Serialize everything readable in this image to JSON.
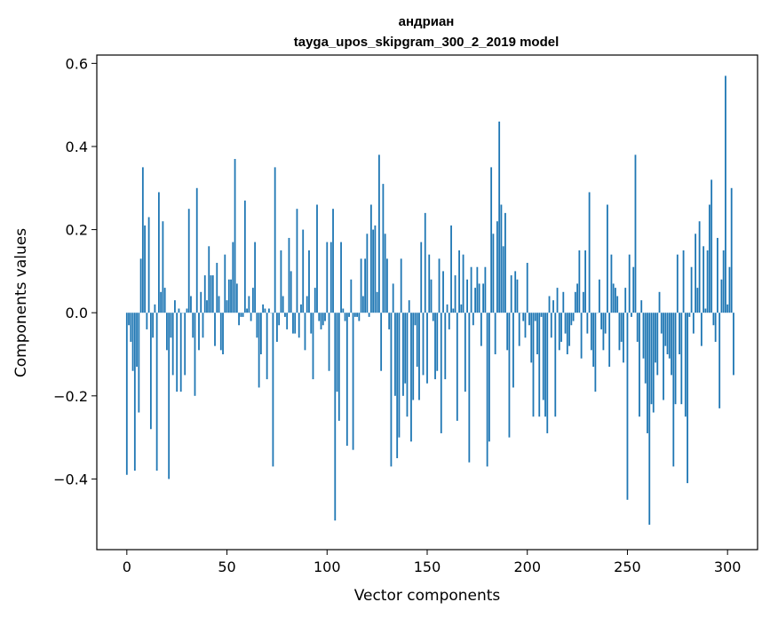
{
  "chart_data": {
    "type": "bar",
    "title": "андриан",
    "subtitle": "tayga_upos_skipgram_300_2_2019 model",
    "xlabel": "Vector components",
    "ylabel": "Components values",
    "xlim": [
      -15,
      315
    ],
    "ylim": [
      -0.57,
      0.62
    ],
    "xticks": [
      0,
      50,
      100,
      150,
      200,
      250,
      300
    ],
    "yticks": [
      -0.4,
      -0.2,
      0.0,
      0.2,
      0.4,
      0.6
    ],
    "ytick_labels": [
      "−0.4",
      "−0.2",
      "0.0",
      "0.2",
      "0.4",
      "0.6"
    ],
    "bar_color": "#1f77b4",
    "grid": false,
    "values": [
      -0.39,
      -0.03,
      -0.07,
      -0.14,
      -0.38,
      -0.13,
      -0.24,
      0.13,
      0.35,
      0.21,
      -0.04,
      0.23,
      -0.28,
      -0.06,
      0.02,
      -0.38,
      0.29,
      0.05,
      0.22,
      0.06,
      -0.09,
      -0.4,
      -0.06,
      -0.15,
      0.03,
      -0.19,
      0.01,
      -0.19,
      0.0,
      -0.15,
      0.01,
      0.25,
      0.04,
      -0.06,
      -0.2,
      0.3,
      -0.09,
      0.05,
      -0.06,
      0.09,
      0.03,
      0.16,
      0.09,
      0.09,
      -0.08,
      0.12,
      0.04,
      -0.09,
      -0.1,
      0.14,
      0.03,
      0.08,
      0.08,
      0.17,
      0.37,
      0.07,
      -0.03,
      -0.01,
      -0.01,
      0.27,
      0.01,
      0.04,
      -0.02,
      0.06,
      0.17,
      -0.06,
      -0.18,
      -0.1,
      0.02,
      0.01,
      -0.16,
      0.01,
      0.0,
      -0.37,
      0.35,
      -0.07,
      -0.03,
      0.15,
      0.04,
      -0.01,
      -0.04,
      0.18,
      0.1,
      -0.05,
      -0.05,
      0.25,
      -0.06,
      0.02,
      0.2,
      -0.09,
      0.04,
      0.15,
      -0.05,
      -0.16,
      0.06,
      0.26,
      -0.02,
      -0.04,
      -0.03,
      -0.02,
      0.17,
      -0.14,
      0.17,
      0.25,
      -0.5,
      -0.19,
      -0.26,
      0.17,
      0.01,
      -0.02,
      -0.32,
      -0.01,
      0.08,
      -0.33,
      -0.01,
      -0.01,
      -0.02,
      0.13,
      0.04,
      0.13,
      0.19,
      -0.01,
      0.26,
      0.2,
      0.21,
      0.05,
      0.38,
      -0.14,
      0.31,
      0.19,
      0.13,
      -0.04,
      -0.37,
      0.07,
      -0.2,
      -0.35,
      -0.3,
      0.13,
      -0.2,
      -0.17,
      -0.25,
      0.03,
      -0.31,
      -0.21,
      -0.03,
      -0.13,
      -0.21,
      0.17,
      -0.15,
      0.24,
      -0.17,
      0.14,
      0.08,
      -0.02,
      -0.16,
      -0.14,
      0.13,
      -0.29,
      0.1,
      -0.16,
      0.02,
      -0.04,
      0.21,
      0.01,
      0.09,
      -0.26,
      0.15,
      0.02,
      0.14,
      -0.19,
      0.08,
      -0.36,
      0.11,
      -0.03,
      0.06,
      0.11,
      0.07,
      -0.08,
      0.07,
      0.11,
      -0.37,
      -0.31,
      0.35,
      0.19,
      -0.1,
      0.22,
      0.46,
      0.26,
      0.16,
      0.24,
      -0.09,
      -0.3,
      0.09,
      -0.18,
      0.1,
      0.08,
      -0.08,
      0.0,
      -0.02,
      -0.06,
      0.12,
      -0.03,
      -0.12,
      -0.25,
      -0.02,
      -0.1,
      -0.25,
      -0.01,
      -0.21,
      -0.25,
      -0.29,
      0.04,
      -0.06,
      0.03,
      -0.25,
      0.06,
      -0.09,
      -0.07,
      0.05,
      -0.05,
      -0.1,
      -0.08,
      -0.03,
      -0.02,
      0.05,
      0.07,
      0.15,
      -0.11,
      0.05,
      0.15,
      -0.05,
      0.29,
      -0.09,
      -0.13,
      -0.19,
      0.0,
      0.08,
      -0.04,
      -0.09,
      -0.05,
      0.26,
      -0.13,
      0.14,
      0.07,
      0.06,
      0.04,
      -0.09,
      -0.07,
      -0.12,
      0.06,
      -0.45,
      0.14,
      -0.01,
      0.11,
      0.38,
      -0.07,
      -0.25,
      0.03,
      -0.11,
      -0.17,
      -0.29,
      -0.51,
      -0.22,
      -0.24,
      -0.12,
      -0.15,
      0.05,
      -0.05,
      -0.21,
      -0.08,
      -0.1,
      -0.11,
      -0.15,
      -0.37,
      -0.22,
      0.14,
      -0.1,
      -0.22,
      0.15,
      -0.25,
      -0.41,
      -0.01,
      0.11,
      -0.05,
      0.19,
      0.06,
      0.22,
      -0.08,
      0.16,
      0.01,
      0.15,
      0.26,
      0.32,
      -0.03,
      -0.07,
      0.18,
      -0.23,
      0.08,
      0.15,
      0.57,
      0.02,
      0.11,
      0.3,
      -0.15
    ]
  }
}
